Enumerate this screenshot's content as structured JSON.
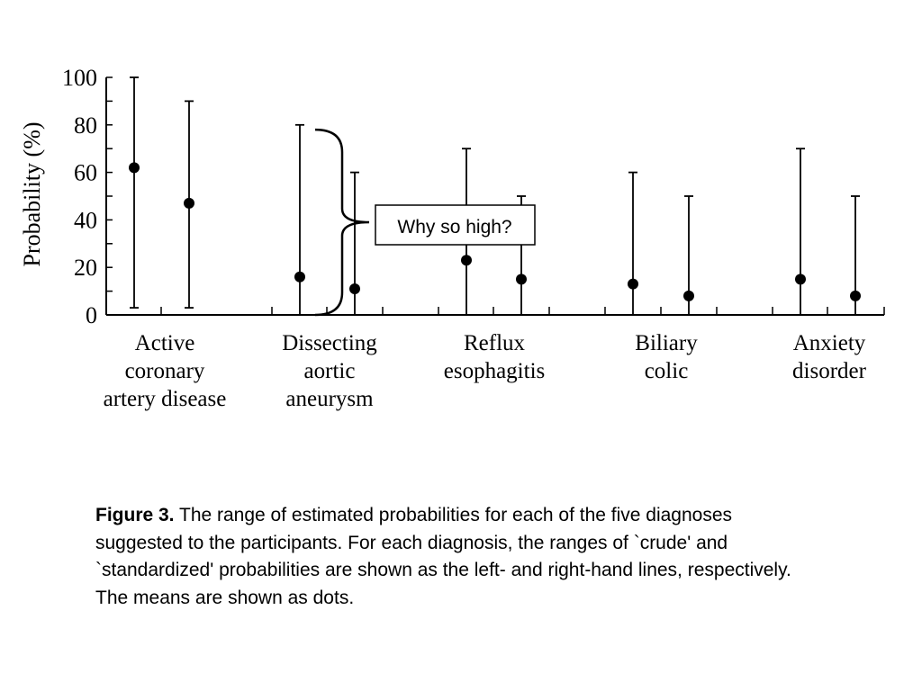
{
  "chart_data": {
    "type": "range-dot",
    "ylabel": "Probability (%)",
    "ylim": [
      0,
      100
    ],
    "yticks": [
      0,
      20,
      40,
      60,
      80,
      100
    ],
    "categories": [
      [
        "Active",
        "coronary",
        "artery disease"
      ],
      [
        "Dissecting",
        "aortic",
        "aneurysm"
      ],
      [
        "Reflux",
        "esophagitis"
      ],
      [
        "Biliary",
        "colic"
      ],
      [
        "Anxiety",
        "disorder"
      ]
    ],
    "series": [
      {
        "values": [
          {
            "low": 3,
            "high": 100,
            "mean": 62
          },
          {
            "low": 0,
            "high": 80,
            "mean": 16
          },
          {
            "low": 0,
            "high": 70,
            "mean": 23
          },
          {
            "low": 0,
            "high": 60,
            "mean": 13
          },
          {
            "low": 0,
            "high": 70,
            "mean": 15
          }
        ]
      },
      {
        "values": [
          {
            "low": 3,
            "high": 90,
            "mean": 47
          },
          {
            "low": 0,
            "high": 60,
            "mean": 11
          },
          {
            "low": 0,
            "high": 50,
            "mean": 15
          },
          {
            "low": 0,
            "high": 50,
            "mean": 8
          },
          {
            "low": 0,
            "high": 50,
            "mean": 8
          }
        ]
      }
    ],
    "annotation": {
      "text": "Why so high?",
      "bracket_from": 0,
      "bracket_to": 78
    }
  },
  "caption": {
    "label": "Figure 3.",
    "text": " The range of estimated probabilities for each of the five diagnoses suggested to the participants. For each diagnosis, the ranges of `crude' and `standardized' probabilities are shown as the left- and right-hand lines, respectively. The means are shown as dots."
  }
}
